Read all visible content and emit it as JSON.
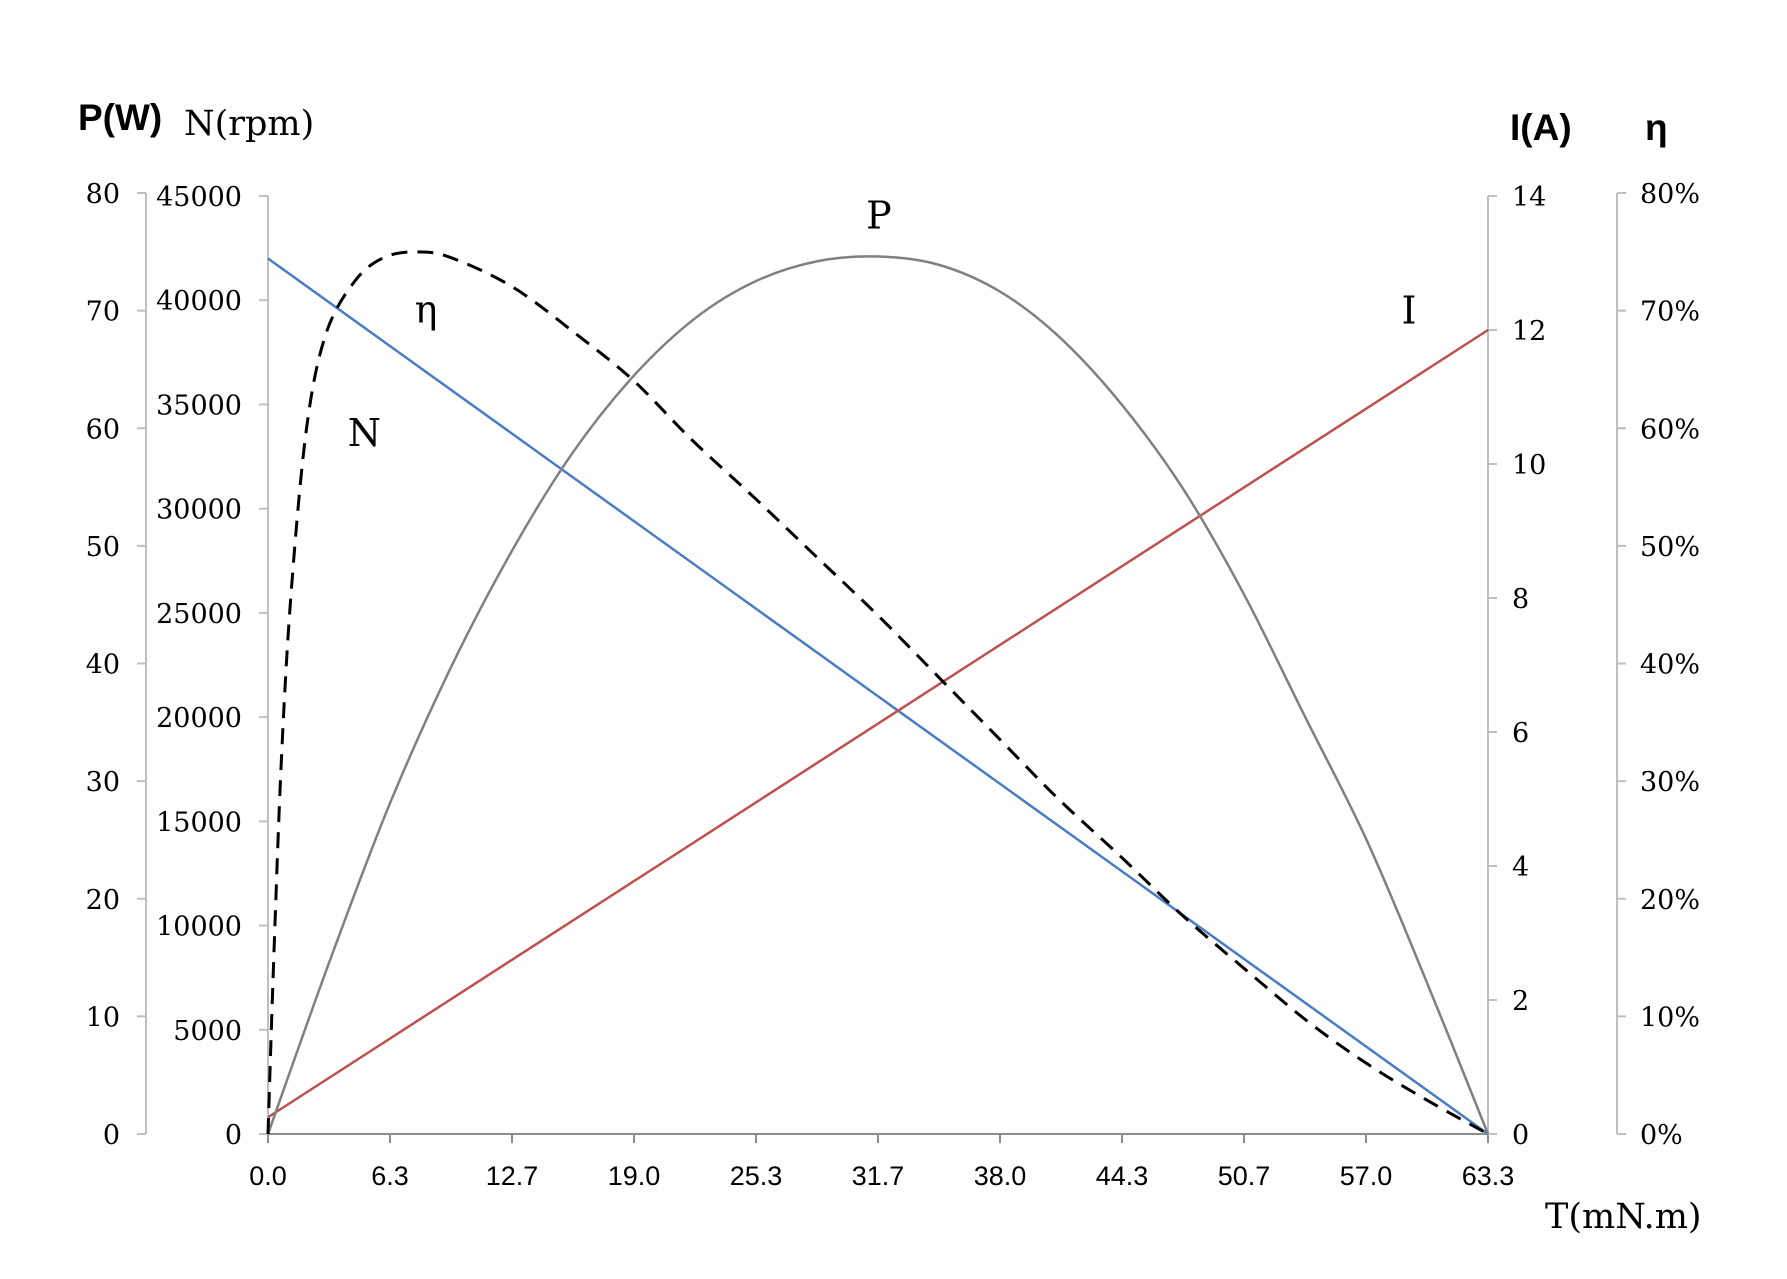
{
  "chart_data": {
    "type": "line",
    "axes": {
      "x": {
        "label": "T(mN.m)",
        "range": [
          0,
          63.3
        ],
        "ticks": [
          "0.0",
          "6.3",
          "12.7",
          "19.0",
          "25.3",
          "31.7",
          "38.0",
          "44.3",
          "50.7",
          "57.0",
          "63.3"
        ]
      },
      "y_power": {
        "label": "P(W)",
        "range": [
          0,
          80
        ],
        "ticks": [
          "0",
          "10",
          "20",
          "30",
          "40",
          "50",
          "60",
          "70",
          "80"
        ]
      },
      "y_speed": {
        "label": "N(rpm)",
        "range": [
          0,
          45000
        ],
        "ticks": [
          "0",
          "5000",
          "10000",
          "15000",
          "20000",
          "25000",
          "30000",
          "35000",
          "40000",
          "45000"
        ]
      },
      "y_current": {
        "label": "I(A)",
        "range": [
          0,
          14
        ],
        "ticks": [
          "0",
          "2",
          "4",
          "6",
          "8",
          "10",
          "12",
          "14"
        ]
      },
      "y_efficiency": {
        "label": "η",
        "range": [
          0,
          0.8
        ],
        "ticks": [
          "0%",
          "10%",
          "20%",
          "30%",
          "40%",
          "50%",
          "60%",
          "70%",
          "80%"
        ]
      }
    },
    "series": [
      {
        "name": "N",
        "axis": "y_speed",
        "color": "#4a7cc4",
        "style": "solid",
        "points": [
          [
            0,
            42000
          ],
          [
            63.3,
            0
          ]
        ]
      },
      {
        "name": "I",
        "axis": "y_current",
        "color": "#c0504d",
        "style": "solid",
        "points": [
          [
            0,
            0.25
          ],
          [
            63.3,
            12
          ]
        ]
      },
      {
        "name": "P",
        "axis": "y_power",
        "color": "#808080",
        "style": "solid",
        "points": [
          [
            0,
            0
          ],
          [
            3.2,
            14.7
          ],
          [
            6.3,
            28
          ],
          [
            9.5,
            39.7
          ],
          [
            12.7,
            49.7
          ],
          [
            15.8,
            57.9
          ],
          [
            19.0,
            64.5
          ],
          [
            22.2,
            69.4
          ],
          [
            25.3,
            72.5
          ],
          [
            28.5,
            74.2
          ],
          [
            31.7,
            74.6
          ],
          [
            34.8,
            73.9
          ],
          [
            38.0,
            71.6
          ],
          [
            41.1,
            67.7
          ],
          [
            44.3,
            62.0
          ],
          [
            47.5,
            54.8
          ],
          [
            50.6,
            46.0
          ],
          [
            53.8,
            35.5
          ],
          [
            57.0,
            25.0
          ],
          [
            60.1,
            13.0
          ],
          [
            63.3,
            0
          ]
        ]
      },
      {
        "name": "η",
        "axis": "y_efficiency",
        "color": "#000000",
        "style": "dashed",
        "points": [
          [
            0,
            0
          ],
          [
            0.3,
            0.15
          ],
          [
            0.7,
            0.32
          ],
          [
            1.2,
            0.46
          ],
          [
            2.0,
            0.6
          ],
          [
            3.0,
            0.68
          ],
          [
            4.5,
            0.725
          ],
          [
            6.0,
            0.745
          ],
          [
            7.7,
            0.75
          ],
          [
            9.5,
            0.745
          ],
          [
            12.7,
            0.72
          ],
          [
            16.0,
            0.68
          ],
          [
            19.0,
            0.64
          ],
          [
            22.0,
            0.59
          ],
          [
            25.3,
            0.54
          ],
          [
            28.5,
            0.49
          ],
          [
            31.7,
            0.44
          ],
          [
            35.0,
            0.385
          ],
          [
            38.0,
            0.335
          ],
          [
            41.0,
            0.285
          ],
          [
            44.3,
            0.235
          ],
          [
            47.5,
            0.185
          ],
          [
            50.7,
            0.14
          ],
          [
            54.0,
            0.095
          ],
          [
            57.0,
            0.06
          ],
          [
            60.0,
            0.03
          ],
          [
            63.3,
            0
          ]
        ]
      }
    ],
    "curve_labels": [
      {
        "text": "N",
        "x": 5.0,
        "axis": "y_speed",
        "y": 33000
      },
      {
        "text": "η",
        "x": 8.2,
        "axis": "y_efficiency",
        "y": 0.69
      },
      {
        "text": "P",
        "x": 31.7,
        "axis": "y_power",
        "y": 77
      },
      {
        "text": "I",
        "x": 59.2,
        "axis": "y_current",
        "y": 12.1
      }
    ],
    "grid": false,
    "legend": "none"
  }
}
